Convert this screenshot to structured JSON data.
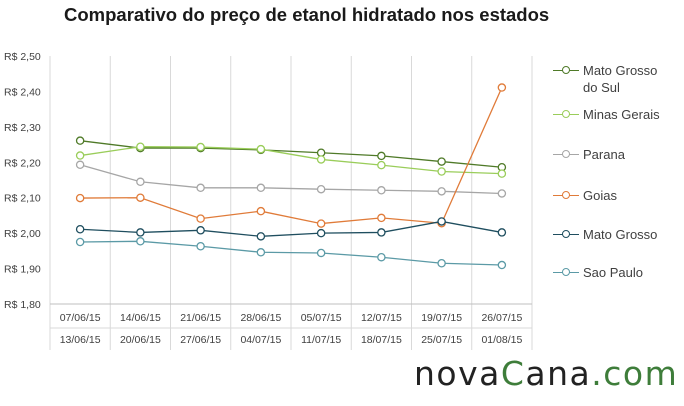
{
  "chart_data": {
    "type": "line",
    "title": "Comparativo do preço de etanol hidratado nos estados",
    "x_labels_top": [
      "07/06/15",
      "14/06/15",
      "21/06/15",
      "28/06/15",
      "05/07/15",
      "12/07/15",
      "19/07/15",
      "26/07/15"
    ],
    "x_labels_bottom": [
      "13/06/15",
      "20/06/15",
      "27/06/15",
      "04/07/15",
      "11/07/15",
      "18/07/15",
      "25/07/15",
      "01/08/15"
    ],
    "y_ticks": [
      "R$ 2,50",
      "R$ 2,40",
      "R$ 2,30",
      "R$ 2,20",
      "R$ 2,10",
      "R$ 2,00",
      "R$ 1,90",
      "R$ 1,80"
    ],
    "ylim": [
      1.8,
      2.5
    ],
    "grid": "vertical",
    "legend_position": "right",
    "series": [
      {
        "name": "Mato Grosso\ndo Sul",
        "color": "#4f7a28",
        "values": [
          2.261,
          2.24,
          2.24,
          2.235,
          2.227,
          2.218,
          2.202,
          2.186
        ]
      },
      {
        "name": "Minas Gerais",
        "color": "#9acd5a",
        "values": [
          2.219,
          2.244,
          2.243,
          2.237,
          2.208,
          2.192,
          2.174,
          2.168
        ]
      },
      {
        "name": "Parana",
        "color": "#a6a6a6",
        "values": [
          2.193,
          2.145,
          2.128,
          2.128,
          2.124,
          2.121,
          2.118,
          2.112
        ]
      },
      {
        "name": "Goias",
        "color": "#e07b39",
        "values": [
          2.099,
          2.1,
          2.041,
          2.062,
          2.027,
          2.043,
          2.028,
          2.411
        ]
      },
      {
        "name": "Mato Grosso",
        "color": "#1f4e5f",
        "values": [
          2.011,
          2.002,
          2.008,
          1.991,
          2.0,
          2.002,
          2.033,
          2.002
        ]
      },
      {
        "name": "Sao Paulo",
        "color": "#5b9aa6",
        "values": [
          1.975,
          1.977,
          1.963,
          1.946,
          1.944,
          1.932,
          1.915,
          1.91
        ]
      }
    ]
  },
  "brand": {
    "part1": "nova",
    "part2": "C",
    "part3": "ana",
    "part4": ".com"
  }
}
